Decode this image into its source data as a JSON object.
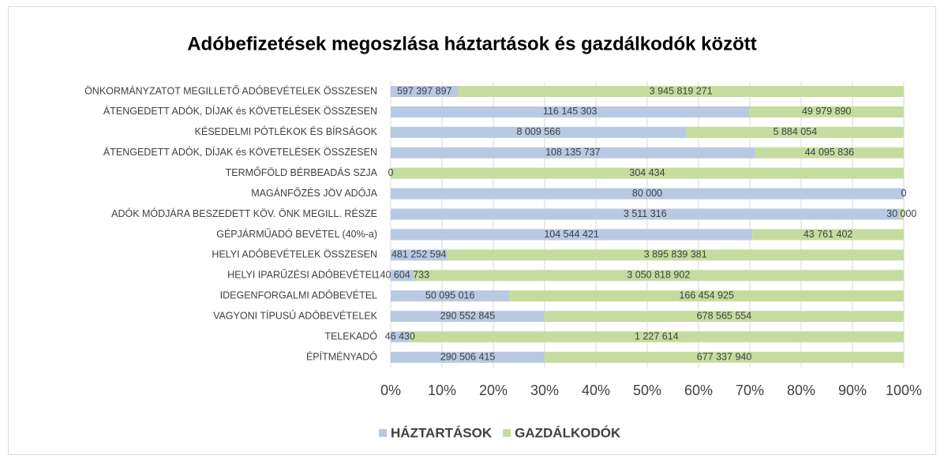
{
  "chart_data": {
    "type": "bar",
    "orientation": "horizontal",
    "stacking": "percent",
    "title": "Adóbefizetések megoszlása háztartások és gazdálkodók között",
    "categories": [
      "ÖNKORMÁNYZATOT MEGILLETŐ ADÓBEVÉTELEK ÖSSZESEN",
      "ÁTENGEDETT ADÓK, DÍJAK és KÖVETELÉSEK ÖSSZESEN",
      "KÉSEDELMI PÓTLÉKOK ÉS BÍRSÁGOK",
      "ÁTENGEDETT ADÓK, DÍJAK és KÖVETELÉSEK ÖSSZESEN",
      "TERMŐFÖLD BÉRBEADÁS SZJA",
      "MAGÁNFŐZÉS JÖV ADÓJA",
      "ADÓK MÓDJÁRA BESZEDETT KÖV. ÖNK MEGILL. RÉSZE",
      "GÉPJÁRMŰADÓ BEVÉTEL (40%-a)",
      "HELYI ADÓBEVÉTELEK ÖSSZESEN",
      "HELYI IPARŰZÉSI ADÓBEVÉTEL",
      "IDEGENFORGALMI ADÓBEVÉTEL",
      "VAGYONI TÍPUSÚ ADÓBEVÉTELEK",
      "TELEKADÓ",
      "ÉPÍTMÉNYADÓ"
    ],
    "series": [
      {
        "name": "HÁZTARTÁSOK",
        "color": "#b7c9e3",
        "values": [
          597397897,
          116145303,
          8009566,
          108135737,
          0,
          80000,
          3511316,
          104544421,
          481252594,
          140604733,
          50095016,
          290552845,
          46430,
          290506415
        ],
        "value_labels": [
          "597 397 897",
          "116 145 303",
          "8 009 566",
          "108 135 737",
          "0",
          "80 000",
          "3 511 316",
          "104 544 421",
          "481 252 594",
          "140 604 733",
          "50 095 016",
          "290 552 845",
          "46 430",
          "290 506 415"
        ]
      },
      {
        "name": "GAZDÁLKODÓK",
        "color": "#c6dc9f",
        "values": [
          3945819271,
          49979890,
          5884054,
          44095836,
          304434,
          0,
          30000,
          43761402,
          3895839381,
          3050818902,
          166454925,
          678565554,
          1227614,
          677337940
        ],
        "value_labels": [
          "3 945 819 271",
          "49 979 890",
          "5 884 054",
          "44 095 836",
          "304 434",
          "0",
          "30 000",
          "43 761 402",
          "3 895 839 381",
          "3 050 818 902",
          "166 454 925",
          "678 565 554",
          "1 227 614",
          "677 337 940"
        ]
      }
    ],
    "xlim": [
      0,
      100
    ],
    "xticks": [
      {
        "value": 0,
        "label": "0%"
      },
      {
        "value": 10,
        "label": "10%"
      },
      {
        "value": 20,
        "label": "20%"
      },
      {
        "value": 30,
        "label": "30%"
      },
      {
        "value": 40,
        "label": "40%"
      },
      {
        "value": 50,
        "label": "50%"
      },
      {
        "value": 60,
        "label": "60%"
      },
      {
        "value": 70,
        "label": "70%"
      },
      {
        "value": 80,
        "label": "80%"
      },
      {
        "value": 90,
        "label": "90%"
      },
      {
        "value": 100,
        "label": "100%"
      }
    ],
    "grid": true,
    "legend": "bottom"
  }
}
